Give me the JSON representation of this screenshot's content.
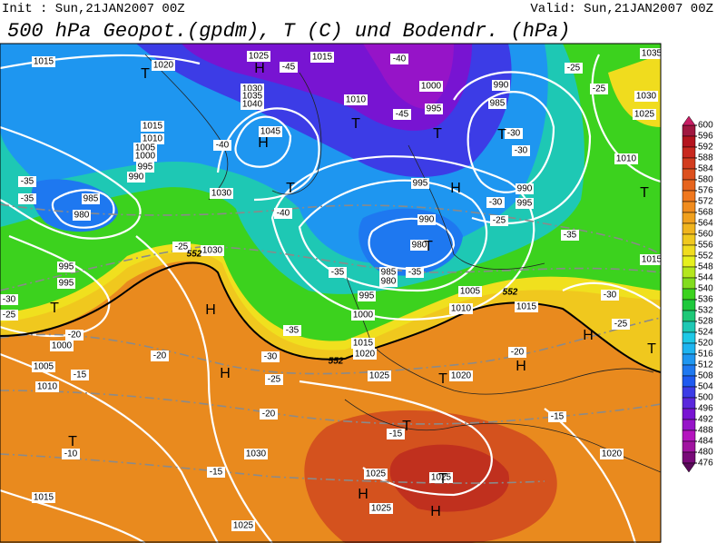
{
  "header": {
    "init": "Init : Sun,21JAN2007 00Z",
    "valid": "Valid: Sun,21JAN2007 00Z",
    "title": "500 hPa Geopot.(gpdm), T (C) und Bodendr. (hPa)"
  },
  "colorbar": {
    "ticks": [
      600,
      596,
      592,
      588,
      584,
      580,
      576,
      572,
      568,
      564,
      560,
      556,
      552,
      548,
      544,
      540,
      536,
      532,
      528,
      524,
      520,
      516,
      512,
      508,
      504,
      500,
      496,
      492,
      488,
      484,
      480,
      476
    ],
    "colors": [
      "#a01840",
      "#b4141e",
      "#c8281e",
      "#d23c1e",
      "#dc501e",
      "#e6641e",
      "#f0781e",
      "#f08c1e",
      "#f0a01e",
      "#f0b41e",
      "#f0c81e",
      "#f0dc1e",
      "#e6f01e",
      "#b4e61e",
      "#82dc1e",
      "#3cd21e",
      "#1ec83c",
      "#1ec878",
      "#1ec8b4",
      "#1ec8e6",
      "#1eb4f0",
      "#1e96f0",
      "#1e78f0",
      "#1e5af0",
      "#3c3ce6",
      "#5a28dc",
      "#7814d2",
      "#9614c8",
      "#b414be",
      "#a014a0",
      "#780a78"
    ],
    "over_color": "#c81e64",
    "under_color": "#5a0a5a"
  },
  "map_labels": [
    "1015",
    "1020",
    "1025",
    "-45",
    "1015",
    "-40",
    "1000",
    "990",
    "985",
    "-25",
    "1035",
    "1030",
    "1025",
    "-25",
    "1030",
    "1035",
    "1040",
    "1045",
    "1010",
    "-45",
    "995",
    "-30",
    "-30",
    "1010",
    "1015",
    "1010",
    "1005",
    "1000",
    "995",
    "990",
    "-40",
    "-35",
    "-35",
    "985",
    "980",
    "1030",
    "-40",
    "995",
    "990",
    "995",
    "-30",
    "-25",
    "990",
    "980",
    "1030",
    "-25",
    "995",
    "995",
    "-30",
    "-25",
    "1000",
    "1005",
    "-20",
    "-15",
    "1010",
    "-35",
    "985",
    "980",
    "-35",
    "995",
    "1000",
    "-35",
    "-30",
    "-25",
    "1015",
    "1020",
    "1025",
    "1005",
    "1010",
    "1015",
    "-35",
    "1015",
    "-30",
    "-25",
    "1020",
    "-20",
    "-20",
    "-20",
    "-15",
    "-15",
    "-10",
    "-15",
    "1030",
    "1025",
    "1025",
    "1020",
    "1025",
    "1015",
    "1025",
    "552",
    "552",
    "552"
  ],
  "pressure_centers": [
    "T",
    "H",
    "T",
    "T",
    "T",
    "H",
    "T",
    "H",
    "T",
    "T",
    "H",
    "H",
    "T",
    "H",
    "H",
    "T",
    "T",
    "T",
    "H",
    "H",
    "T",
    "T"
  ]
}
